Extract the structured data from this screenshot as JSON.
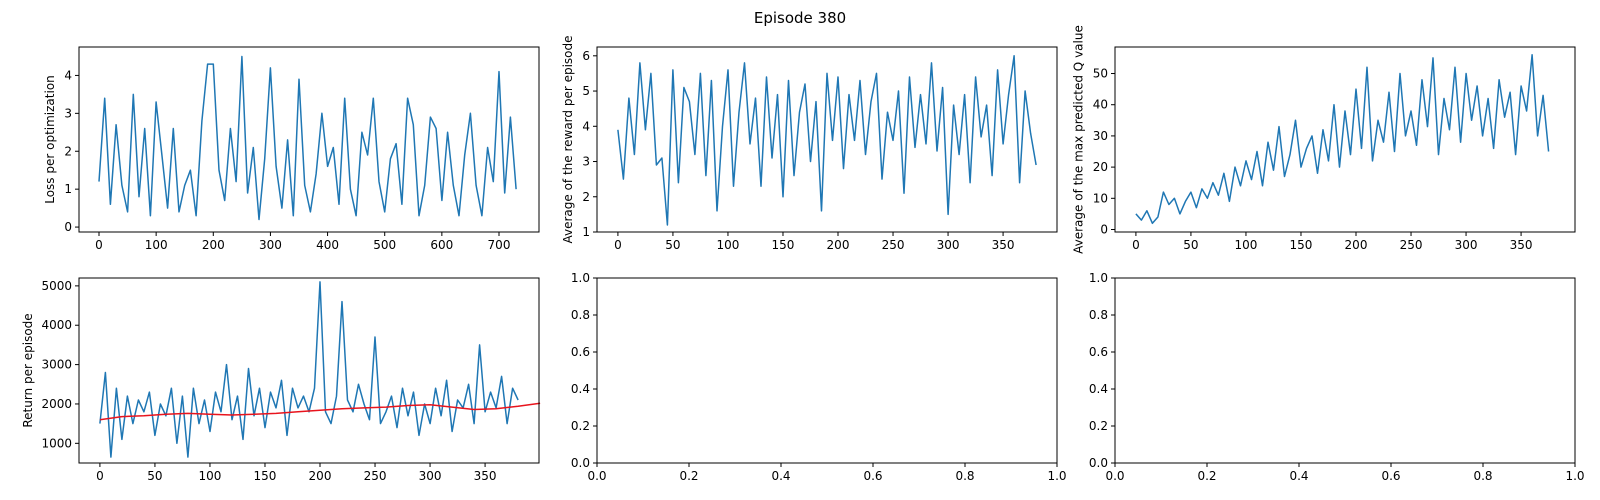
{
  "figure": {
    "suptitle": "Episode 380"
  },
  "colors": {
    "series_main": "#1f77b4",
    "series_avg": "#e8141d"
  },
  "chart_data": [
    {
      "id": "loss",
      "type": "line",
      "xlabel": "",
      "ylabel": "Loss per optimization",
      "xlim": [
        -35,
        770
      ],
      "ylim": [
        -0.13,
        4.75
      ],
      "xticks": [
        0,
        100,
        200,
        300,
        400,
        500,
        600,
        700
      ],
      "yticks": [
        0,
        1,
        2,
        3,
        4
      ],
      "grid": false,
      "series": [
        {
          "x_start": 0,
          "x_step": 10,
          "values": [
            1.2,
            3.4,
            0.6,
            2.7,
            1.1,
            0.4,
            3.5,
            0.8,
            2.6,
            0.3,
            3.3,
            1.9,
            0.5,
            2.6,
            0.4,
            1.1,
            1.5,
            0.3,
            2.8,
            4.3,
            4.3,
            1.5,
            0.7,
            2.6,
            1.2,
            4.5,
            0.9,
            2.1,
            0.2,
            1.8,
            4.2,
            1.6,
            0.5,
            2.3,
            0.3,
            3.9,
            1.1,
            0.4,
            1.4,
            3.0,
            1.6,
            2.1,
            0.6,
            3.4,
            1.0,
            0.3,
            2.5,
            1.9,
            3.4,
            1.2,
            0.4,
            1.8,
            2.2,
            0.6,
            3.4,
            2.7,
            0.3,
            1.1,
            2.9,
            2.6,
            0.7,
            2.5,
            1.1,
            0.3,
            1.9,
            3.0,
            1.1,
            0.3,
            2.1,
            1.2,
            4.1,
            0.9,
            2.9,
            1.0
          ]
        }
      ]
    },
    {
      "id": "reward",
      "type": "line",
      "xlabel": "",
      "ylabel": "Average of the reward per episode",
      "xlim": [
        -19,
        399
      ],
      "ylim": [
        1.0,
        6.25
      ],
      "xticks": [
        0,
        50,
        100,
        150,
        200,
        250,
        300,
        350
      ],
      "yticks": [
        1,
        2,
        3,
        4,
        5,
        6
      ],
      "grid": false,
      "series": [
        {
          "x_start": 0,
          "x_step": 5,
          "values": [
            3.9,
            2.5,
            4.8,
            3.2,
            5.8,
            3.9,
            5.5,
            2.9,
            3.1,
            1.2,
            5.6,
            2.4,
            5.1,
            4.7,
            3.2,
            5.5,
            2.6,
            5.3,
            1.6,
            4.0,
            5.6,
            2.3,
            4.4,
            5.8,
            3.5,
            4.8,
            2.3,
            5.4,
            3.1,
            4.9,
            2.0,
            5.3,
            2.6,
            4.4,
            5.2,
            3.0,
            4.7,
            1.6,
            5.5,
            3.6,
            5.4,
            2.8,
            4.9,
            3.6,
            5.3,
            3.2,
            4.7,
            5.5,
            2.5,
            4.4,
            3.6,
            5.0,
            2.1,
            5.4,
            3.4,
            4.9,
            3.5,
            5.8,
            3.3,
            5.1,
            1.5,
            4.6,
            3.2,
            4.9,
            2.4,
            5.4,
            3.7,
            4.6,
            2.6,
            5.6,
            3.5,
            4.9,
            6.0,
            2.4,
            5.0,
            3.8,
            2.9
          ]
        }
      ]
    },
    {
      "id": "qvalue",
      "type": "line",
      "xlabel": "",
      "ylabel": "Average of the max predicted Q value",
      "xlim": [
        -19,
        399
      ],
      "ylim": [
        -0.8,
        58.5
      ],
      "xticks": [
        0,
        50,
        100,
        150,
        200,
        250,
        300,
        350
      ],
      "yticks": [
        0,
        10,
        20,
        30,
        40,
        50
      ],
      "grid": false,
      "series": [
        {
          "x_start": 0,
          "x_step": 5,
          "values": [
            5,
            3,
            6,
            2,
            4,
            12,
            8,
            10,
            5,
            9,
            12,
            7,
            13,
            10,
            15,
            11,
            18,
            9,
            20,
            14,
            22,
            16,
            25,
            14,
            28,
            19,
            33,
            17,
            24,
            35,
            20,
            26,
            30,
            18,
            32,
            22,
            40,
            20,
            38,
            24,
            45,
            26,
            52,
            22,
            35,
            28,
            44,
            25,
            50,
            30,
            38,
            27,
            48,
            33,
            55,
            24,
            42,
            32,
            52,
            28,
            50,
            35,
            46,
            30,
            42,
            26,
            48,
            36,
            44,
            24,
            46,
            38,
            56,
            30,
            43,
            25
          ]
        }
      ]
    },
    {
      "id": "return",
      "type": "line",
      "xlabel": "",
      "ylabel": "Return per episode",
      "xlim": [
        -19,
        399
      ],
      "ylim": [
        500,
        5200
      ],
      "xticks": [
        0,
        50,
        100,
        150,
        200,
        250,
        300,
        350
      ],
      "yticks": [
        1000,
        2000,
        3000,
        4000,
        5000
      ],
      "grid": false,
      "series": [
        {
          "x_start": 0,
          "x_step": 5,
          "values": [
            1500,
            2800,
            650,
            2400,
            1100,
            2200,
            1500,
            2100,
            1800,
            2300,
            1200,
            2000,
            1700,
            2400,
            1000,
            2200,
            650,
            2400,
            1500,
            2100,
            1300,
            2300,
            1800,
            3000,
            1600,
            2200,
            1100,
            2900,
            1700,
            2400,
            1400,
            2300,
            1900,
            2600,
            1200,
            2400,
            1900,
            2200,
            1800,
            2400,
            5100,
            1800,
            1500,
            2200,
            4600,
            2100,
            1800,
            2500,
            2000,
            1600,
            3700,
            1500,
            1800,
            2200,
            1400,
            2400,
            1700,
            2300,
            1200,
            2000,
            1500,
            2400,
            1700,
            2600,
            1300,
            2100,
            1900,
            2500,
            1500,
            3500,
            1800,
            2300,
            1900,
            2700,
            1500,
            2400,
            2100
          ]
        },
        {
          "x_start": 0,
          "x_step": 20,
          "values": [
            1600,
            1680,
            1700,
            1740,
            1760,
            1740,
            1720,
            1740,
            1760,
            1800,
            1840,
            1880,
            1900,
            1920,
            1960,
            1980,
            1920,
            1860,
            1880,
            1940,
            2020
          ]
        }
      ]
    },
    {
      "id": "empty1",
      "type": "line",
      "xlabel": "",
      "ylabel": "",
      "xlim": [
        0,
        1
      ],
      "ylim": [
        0,
        1
      ],
      "xticks": [
        0.0,
        0.2,
        0.4,
        0.6,
        0.8,
        1.0
      ],
      "yticks": [
        0.0,
        0.2,
        0.4,
        0.6,
        0.8,
        1.0
      ],
      "grid": false,
      "series": []
    },
    {
      "id": "empty2",
      "type": "line",
      "xlabel": "",
      "ylabel": "",
      "xlim": [
        0,
        1
      ],
      "ylim": [
        0,
        1
      ],
      "xticks": [
        0.0,
        0.2,
        0.4,
        0.6,
        0.8,
        1.0
      ],
      "yticks": [
        0.0,
        0.2,
        0.4,
        0.6,
        0.8,
        1.0
      ],
      "grid": false,
      "series": []
    }
  ]
}
